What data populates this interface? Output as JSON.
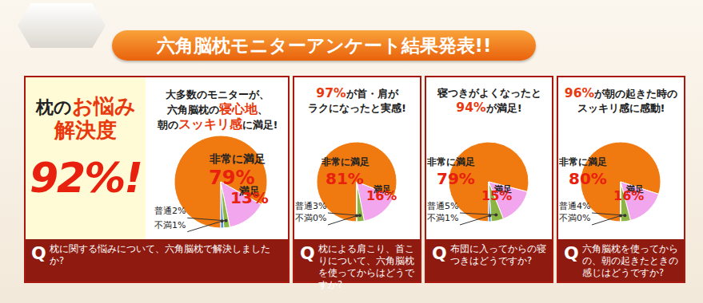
{
  "header": {
    "title": "六角脳枕モニターアンケート結果発表!!"
  },
  "summary": {
    "lines": [
      [
        {
          "text": "枕の"
        },
        {
          "text": "お悩み",
          "em": true
        }
      ],
      [
        {
          "text": "解決度",
          "em": true
        }
      ]
    ],
    "score": "92%!"
  },
  "panels": [
    {
      "headline": [
        [
          {
            "text": "大多数のモニターが、"
          }
        ],
        [
          {
            "text": "六角脳枕の"
          },
          {
            "text": "寝心地",
            "em": true
          },
          {
            "text": "、"
          }
        ],
        [
          {
            "text": "朝の"
          },
          {
            "text": "スッキリ感",
            "em": true
          },
          {
            "text": "に満足!"
          }
        ]
      ],
      "question_mark": "Q",
      "question": "枕に関する悩みについて、六角脳枕で解決しましたか?"
    },
    {
      "headline": [
        [
          {
            "text": "97%",
            "em": true
          },
          {
            "text": "が首・肩が"
          }
        ],
        [
          {
            "text": "ラクになったと実感!"
          }
        ]
      ],
      "question_mark": "Q",
      "question": "枕による肩こり、首こりについて、六角脳枕を使ってからはどうですか?"
    },
    {
      "headline": [
        [
          {
            "text": "寝つきがよくなったと"
          }
        ],
        [
          {
            "text": "94%",
            "em": true
          },
          {
            "text": "が満足!"
          }
        ]
      ],
      "question_mark": "Q",
      "question": "布団に入ってからの寝つきはどうですか?"
    },
    {
      "headline": [
        [
          {
            "text": "96%",
            "em": true
          },
          {
            "text": "が朝の起きた時の"
          }
        ],
        [
          {
            "text": "スッキリ感に感動!"
          }
        ]
      ],
      "question_mark": "Q",
      "question": "六角脳枕を使ってからの、朝の起きたときの感じはどうですか?"
    }
  ],
  "chart_data": [
    {
      "type": "pie",
      "categories": [
        "非常に満足",
        "満足",
        "普通",
        "不満"
      ],
      "values": [
        79,
        13,
        2,
        1
      ],
      "value_labels": [
        "79%",
        "13%",
        "2%",
        "1%"
      ],
      "colors": [
        "#f07a10",
        "#f2a6ee",
        "#8db543",
        "#4a8fd4"
      ],
      "data_labels": true
    },
    {
      "type": "pie",
      "categories": [
        "非常に満足",
        "満足",
        "普通",
        "不満"
      ],
      "values": [
        81,
        16,
        3,
        0
      ],
      "value_labels": [
        "81%",
        "16%",
        "3%",
        "0%"
      ],
      "colors": [
        "#f07a10",
        "#f2a6ee",
        "#8db543",
        "#4a8fd4"
      ],
      "data_labels": true
    },
    {
      "type": "pie",
      "categories": [
        "非常に満足",
        "満足",
        "普通",
        "不満"
      ],
      "values": [
        79,
        15,
        5,
        1
      ],
      "value_labels": [
        "79%",
        "15%",
        "5%",
        "1%"
      ],
      "colors": [
        "#f07a10",
        "#f2a6ee",
        "#8db543",
        "#4a8fd4"
      ],
      "data_labels": true
    },
    {
      "type": "pie",
      "categories": [
        "非常に満足",
        "満足",
        "普通",
        "不満"
      ],
      "values": [
        80,
        16,
        4,
        0
      ],
      "value_labels": [
        "80%",
        "16%",
        "4%",
        "0%"
      ],
      "colors": [
        "#f07a10",
        "#f2a6ee",
        "#8db543",
        "#4a8fd4"
      ],
      "data_labels": true
    }
  ]
}
